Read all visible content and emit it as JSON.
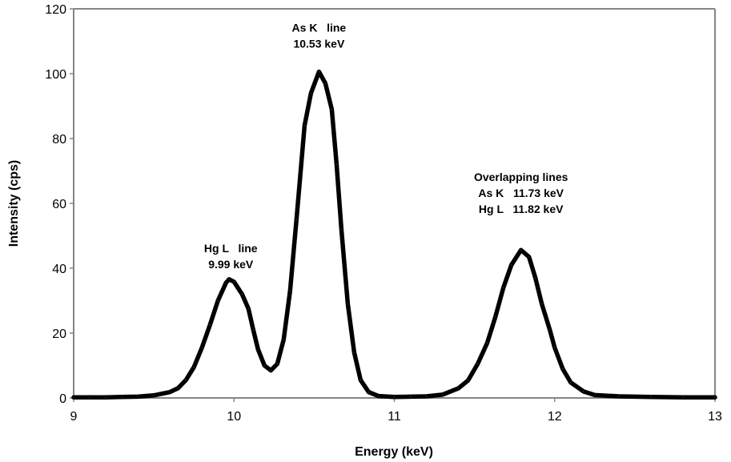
{
  "chart_data": {
    "type": "line",
    "title": "",
    "xlabel": "Energy (keV)",
    "ylabel": "Intensity (cps)",
    "xlim": [
      9,
      13
    ],
    "ylim": [
      0,
      120
    ],
    "x_ticks": [
      9,
      10,
      11,
      12,
      13
    ],
    "y_ticks": [
      0,
      20,
      40,
      60,
      80,
      100,
      120
    ],
    "grid": false,
    "legend": "none",
    "series": [
      {
        "name": "Spectrum",
        "color": "#000000",
        "points": [
          [
            9.0,
            0.2
          ],
          [
            9.1,
            0.2
          ],
          [
            9.2,
            0.2
          ],
          [
            9.3,
            0.3
          ],
          [
            9.4,
            0.4
          ],
          [
            9.5,
            0.8
          ],
          [
            9.6,
            1.8
          ],
          [
            9.65,
            3.0
          ],
          [
            9.7,
            5.5
          ],
          [
            9.75,
            9.5
          ],
          [
            9.8,
            15.5
          ],
          [
            9.85,
            22.5
          ],
          [
            9.9,
            30.0
          ],
          [
            9.95,
            35.5
          ],
          [
            9.97,
            36.6
          ],
          [
            10.0,
            35.8
          ],
          [
            10.05,
            32.0
          ],
          [
            10.09,
            27.5
          ],
          [
            10.12,
            21.0
          ],
          [
            10.15,
            15.0
          ],
          [
            10.19,
            10.0
          ],
          [
            10.23,
            8.5
          ],
          [
            10.27,
            10.5
          ],
          [
            10.31,
            18.0
          ],
          [
            10.35,
            33.0
          ],
          [
            10.39,
            55.0
          ],
          [
            10.44,
            84.0
          ],
          [
            10.48,
            94.0
          ],
          [
            10.53,
            100.6
          ],
          [
            10.57,
            97.0
          ],
          [
            10.61,
            89.0
          ],
          [
            10.64,
            72.0
          ],
          [
            10.67,
            52.0
          ],
          [
            10.71,
            29.0
          ],
          [
            10.75,
            14.0
          ],
          [
            10.79,
            5.5
          ],
          [
            10.84,
            1.8
          ],
          [
            10.9,
            0.6
          ],
          [
            11.0,
            0.3
          ],
          [
            11.1,
            0.4
          ],
          [
            11.2,
            0.5
          ],
          [
            11.3,
            1.0
          ],
          [
            11.4,
            3.0
          ],
          [
            11.46,
            5.4
          ],
          [
            11.52,
            10.5
          ],
          [
            11.58,
            17.0
          ],
          [
            11.63,
            25.0
          ],
          [
            11.68,
            34.0
          ],
          [
            11.73,
            41.0
          ],
          [
            11.79,
            45.6
          ],
          [
            11.84,
            43.5
          ],
          [
            11.88,
            37.0
          ],
          [
            11.92,
            29.0
          ],
          [
            11.97,
            21.0
          ],
          [
            12.0,
            15.5
          ],
          [
            12.05,
            9.0
          ],
          [
            12.1,
            4.8
          ],
          [
            12.18,
            2.0
          ],
          [
            12.25,
            0.9
          ],
          [
            12.4,
            0.5
          ],
          [
            12.6,
            0.3
          ],
          [
            12.8,
            0.2
          ],
          [
            13.0,
            0.2
          ]
        ]
      }
    ],
    "annotations": [
      {
        "lines": [
          "As K   line",
          "10.53 keV"
        ],
        "x": 10.53,
        "y": 108
      },
      {
        "lines": [
          "Hg L   line",
          "9.99 keV"
        ],
        "x": 9.98,
        "y": 40
      },
      {
        "lines": [
          "Overlapping lines",
          "As K   11.73 keV",
          "Hg L   11.82 keV"
        ],
        "x": 11.79,
        "y": 57
      }
    ]
  }
}
